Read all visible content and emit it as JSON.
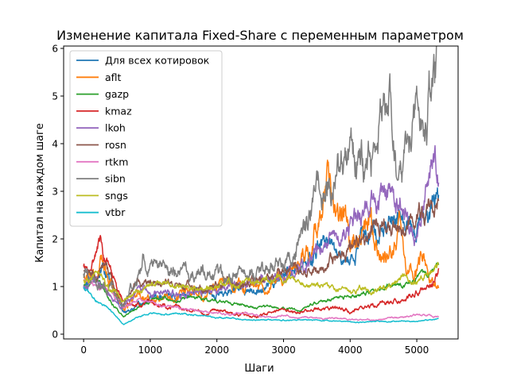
{
  "chart_data": {
    "type": "line",
    "title": "Изменение капитала Fixed-Share с переменным параметром",
    "xlabel": "Шаги",
    "ylabel": "Капитал на каждом шаге",
    "xlim": [
      -300,
      5620
    ],
    "ylim": [
      -0.1,
      6.05
    ],
    "x_ticks": [
      0,
      1000,
      2000,
      3000,
      4000,
      5000
    ],
    "y_ticks": [
      0,
      1,
      2,
      3,
      4,
      5,
      6
    ],
    "grid": false,
    "legend_position": "top-left",
    "series": [
      {
        "name": "Для всех котировок",
        "color": "#1f77b4",
        "volatility": 0.25,
        "x": [
          0,
          200,
          300,
          450,
          600,
          800,
          1000,
          1200,
          1400,
          1600,
          1800,
          2000,
          2200,
          2400,
          2600,
          2800,
          3000,
          3200,
          3350,
          3500,
          3650,
          3800,
          4000,
          4200,
          4400,
          4600,
          4800,
          5000,
          5200,
          5330
        ],
        "y": [
          1.0,
          1.3,
          1.4,
          0.9,
          0.5,
          0.55,
          0.75,
          0.8,
          0.75,
          0.85,
          0.95,
          0.85,
          0.9,
          0.9,
          1.0,
          1.1,
          1.2,
          1.35,
          1.4,
          1.8,
          2.0,
          1.6,
          1.5,
          2.0,
          2.2,
          2.4,
          2.5,
          2.3,
          2.6,
          2.9
        ]
      },
      {
        "name": "aflt",
        "color": "#ff7f0e",
        "volatility": 0.3,
        "x": [
          0,
          200,
          300,
          450,
          600,
          800,
          1000,
          1200,
          1400,
          1600,
          1800,
          2000,
          2200,
          2400,
          2600,
          2800,
          3000,
          3200,
          3400,
          3550,
          3650,
          3700,
          3800,
          3900,
          4000,
          4150,
          4300,
          4400,
          4500,
          4650,
          4750,
          4850,
          5000,
          5100,
          5200,
          5330
        ],
        "y": [
          1.2,
          1.3,
          1.5,
          1.0,
          0.5,
          0.9,
          0.7,
          0.75,
          0.8,
          0.9,
          0.85,
          0.95,
          1.0,
          1.0,
          1.05,
          1.1,
          1.2,
          1.4,
          1.9,
          2.5,
          3.3,
          2.8,
          2.1,
          2.6,
          2.2,
          2.0,
          2.6,
          1.8,
          1.6,
          1.8,
          2.2,
          1.2,
          1.5,
          1.7,
          1.1,
          0.9
        ]
      },
      {
        "name": "gazp",
        "color": "#2ca02c",
        "volatility": 0.12,
        "x": [
          0,
          200,
          450,
          600,
          800,
          1000,
          1200,
          1400,
          1600,
          1800,
          2000,
          2200,
          2400,
          2600,
          2800,
          3000,
          3200,
          3400,
          3600,
          3800,
          4000,
          4200,
          4400,
          4600,
          4800,
          5000,
          5200,
          5330
        ],
        "y": [
          1.0,
          1.15,
          0.6,
          0.35,
          0.55,
          0.7,
          0.75,
          0.7,
          0.8,
          0.75,
          0.7,
          0.65,
          0.6,
          0.55,
          0.6,
          0.55,
          0.5,
          0.6,
          0.7,
          0.75,
          0.8,
          0.85,
          0.9,
          1.05,
          1.0,
          1.15,
          1.3,
          1.4
        ]
      },
      {
        "name": "kmaz",
        "color": "#d62728",
        "volatility": 0.18,
        "x": [
          0,
          100,
          200,
          250,
          300,
          400,
          500,
          600,
          800,
          1000,
          1200,
          1400,
          1600,
          1800,
          2000,
          2200,
          2400,
          2600,
          2800,
          3000,
          3200,
          3400,
          3600,
          3800,
          4000,
          4200,
          4400,
          4600,
          4800,
          5000,
          5200,
          5330
        ],
        "y": [
          1.4,
          1.3,
          1.8,
          2.0,
          1.6,
          1.4,
          0.9,
          0.7,
          0.6,
          0.7,
          0.6,
          0.55,
          0.5,
          0.45,
          0.5,
          0.45,
          0.4,
          0.4,
          0.45,
          0.5,
          0.45,
          0.5,
          0.5,
          0.55,
          0.5,
          0.55,
          0.6,
          0.7,
          0.7,
          0.9,
          1.0,
          1.3
        ]
      },
      {
        "name": "lkoh",
        "color": "#9467bd",
        "volatility": 0.22,
        "x": [
          0,
          200,
          450,
          600,
          800,
          1000,
          1200,
          1400,
          1600,
          1800,
          2000,
          2200,
          2400,
          2600,
          2800,
          3000,
          3200,
          3400,
          3600,
          3800,
          4000,
          4200,
          4400,
          4600,
          4800,
          4900,
          5000,
          5100,
          5200,
          5330
        ],
        "y": [
          1.0,
          1.1,
          0.7,
          0.6,
          0.9,
          0.85,
          0.9,
          0.8,
          0.9,
          0.9,
          0.95,
          1.0,
          1.0,
          1.1,
          1.15,
          1.25,
          1.35,
          1.5,
          1.8,
          1.9,
          2.3,
          2.6,
          2.7,
          3.0,
          2.9,
          2.3,
          1.9,
          2.7,
          3.6,
          3.4
        ]
      },
      {
        "name": "rosn",
        "color": "#8c564b",
        "volatility": 0.2,
        "x": [
          0,
          200,
          300,
          450,
          600,
          800,
          1000,
          1200,
          1400,
          1600,
          1800,
          2000,
          2200,
          2400,
          2600,
          2800,
          3000,
          3200,
          3400,
          3600,
          3800,
          4000,
          4200,
          4400,
          4600,
          4800,
          5000,
          5200,
          5330
        ],
        "y": [
          1.3,
          1.2,
          1.5,
          1.0,
          0.6,
          1.1,
          1.0,
          1.1,
          1.0,
          1.05,
          0.95,
          1.0,
          1.1,
          1.05,
          1.1,
          1.2,
          1.3,
          1.3,
          1.35,
          1.4,
          1.6,
          1.8,
          2.0,
          2.2,
          2.3,
          2.2,
          2.5,
          2.6,
          2.8
        ]
      },
      {
        "name": "rtkm",
        "color": "#e377c2",
        "volatility": 0.12,
        "x": [
          0,
          200,
          400,
          600,
          800,
          1000,
          1200,
          1400,
          1600,
          1800,
          2000,
          2200,
          2400,
          2600,
          2800,
          3000,
          3200,
          3400,
          3600,
          3800,
          4000,
          4200,
          4400,
          4600,
          4800,
          5000,
          5200,
          5330
        ],
        "y": [
          1.1,
          1.0,
          0.9,
          0.55,
          0.7,
          0.65,
          0.6,
          0.55,
          0.5,
          0.45,
          0.45,
          0.4,
          0.45,
          0.4,
          0.35,
          0.4,
          0.35,
          0.35,
          0.3,
          0.35,
          0.3,
          0.3,
          0.3,
          0.35,
          0.35,
          0.4,
          0.4,
          0.35
        ]
      },
      {
        "name": "sibn",
        "color": "#7f7f7f",
        "volatility": 0.28,
        "x": [
          0,
          200,
          450,
          600,
          800,
          900,
          1000,
          1200,
          1400,
          1600,
          1800,
          2000,
          2200,
          2400,
          2600,
          2800,
          3000,
          3200,
          3400,
          3600,
          3800,
          4000,
          4200,
          4400,
          4500,
          4600,
          4700,
          4800,
          5000,
          5100,
          5200,
          5300,
          5330
        ],
        "y": [
          1.2,
          1.1,
          0.9,
          0.7,
          1.2,
          1.7,
          1.5,
          1.3,
          1.4,
          1.2,
          1.3,
          1.3,
          1.2,
          1.3,
          1.2,
          1.4,
          1.5,
          1.8,
          2.5,
          3.2,
          3.5,
          3.8,
          3.5,
          4.0,
          4.6,
          4.8,
          3.1,
          3.5,
          4.5,
          4.2,
          5.0,
          5.7,
          5.4
        ]
      },
      {
        "name": "sngs",
        "color": "#bcbd22",
        "volatility": 0.15,
        "x": [
          0,
          200,
          450,
          600,
          800,
          1000,
          1200,
          1400,
          1600,
          1800,
          2000,
          2200,
          2400,
          2600,
          2800,
          3000,
          3200,
          3400,
          3600,
          3800,
          4000,
          4200,
          4400,
          4600,
          4800,
          5000,
          5200,
          5330
        ],
        "y": [
          1.1,
          1.2,
          0.9,
          0.7,
          0.9,
          1.0,
          1.1,
          1.05,
          1.0,
          0.95,
          1.0,
          1.1,
          1.05,
          1.1,
          1.2,
          1.2,
          1.1,
          1.0,
          1.0,
          0.95,
          0.9,
          0.95,
          0.9,
          1.0,
          1.2,
          1.1,
          1.3,
          1.4
        ]
      },
      {
        "name": "vtbr",
        "color": "#17becf",
        "volatility": 0.1,
        "x": [
          0,
          100,
          200,
          400,
          600,
          800,
          1000,
          1200,
          1400,
          1600,
          1800,
          2000,
          2200,
          2400,
          2600,
          2800,
          3000,
          3200,
          3400,
          3600,
          3800,
          4000,
          4200,
          4400,
          4600,
          4800,
          5000,
          5200,
          5330
        ],
        "y": [
          1.0,
          0.85,
          0.7,
          0.5,
          0.2,
          0.35,
          0.45,
          0.4,
          0.45,
          0.4,
          0.4,
          0.35,
          0.35,
          0.3,
          0.3,
          0.3,
          0.3,
          0.3,
          0.3,
          0.28,
          0.28,
          0.26,
          0.25,
          0.28,
          0.26,
          0.28,
          0.26,
          0.3,
          0.32
        ]
      }
    ]
  }
}
